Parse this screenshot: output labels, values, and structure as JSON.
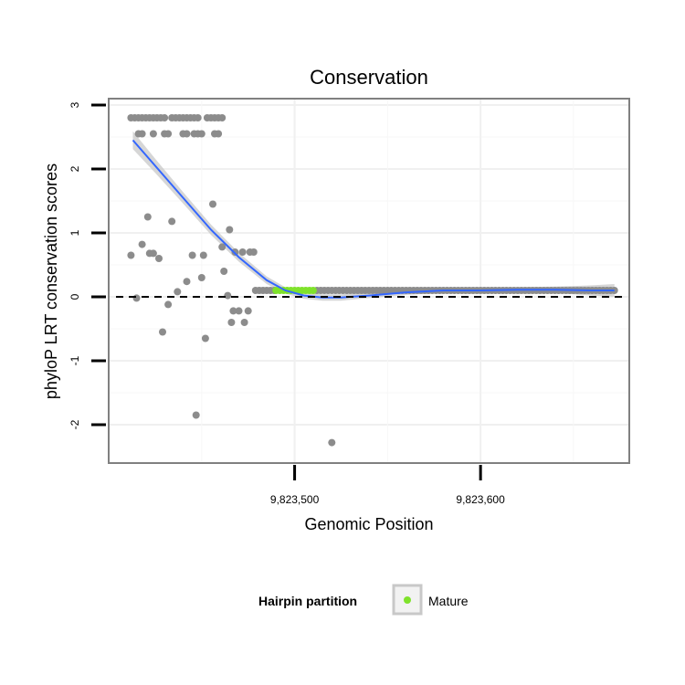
{
  "chart_data": {
    "type": "scatter",
    "title": "Conservation",
    "xlabel": "Genomic Position",
    "ylabel": "phyloP LRT conservation scores",
    "xlim": [
      9823400,
      9823680
    ],
    "ylim": [
      -2.6,
      3.1
    ],
    "x_ticks": [
      {
        "value": 9823500,
        "label": "9,823,500"
      },
      {
        "value": 9823600,
        "label": "9,823,600"
      }
    ],
    "y_ticks": [
      {
        "value": 3,
        "label": "3"
      },
      {
        "value": 2,
        "label": "2"
      },
      {
        "value": 1,
        "label": "1"
      },
      {
        "value": 0,
        "label": "0"
      },
      {
        "value": -1,
        "label": "-1"
      },
      {
        "value": -2,
        "label": "-2"
      }
    ],
    "grid": true,
    "reference_line": {
      "y": 0,
      "style": "dashed"
    },
    "legend": {
      "title": "Hairpin partition",
      "position": "bottom",
      "entries": [
        {
          "label": "Mature",
          "color": "#7fe22b"
        }
      ]
    },
    "colors": {
      "points": "#8c8c8c",
      "mature": "#7fe22b",
      "smooth": "#3366ff",
      "ribbon": "#c8c8c8",
      "reference": "#000000"
    },
    "series": [
      {
        "points": [
          [
            9823412,
            2.8
          ],
          [
            9823414,
            2.8
          ],
          [
            9823416,
            2.8
          ],
          [
            9823418,
            2.8
          ],
          [
            9823420,
            2.8
          ],
          [
            9823422,
            2.8
          ],
          [
            9823424,
            2.8
          ],
          [
            9823426,
            2.8
          ],
          [
            9823428,
            2.8
          ],
          [
            9823430,
            2.8
          ],
          [
            9823434,
            2.8
          ],
          [
            9823436,
            2.8
          ],
          [
            9823438,
            2.8
          ],
          [
            9823440,
            2.8
          ],
          [
            9823442,
            2.8
          ],
          [
            9823444,
            2.8
          ],
          [
            9823446,
            2.8
          ],
          [
            9823448,
            2.8
          ],
          [
            9823453,
            2.8
          ],
          [
            9823455,
            2.8
          ],
          [
            9823457,
            2.8
          ],
          [
            9823459,
            2.8
          ],
          [
            9823461,
            2.8
          ],
          [
            9823416,
            2.55
          ],
          [
            9823418,
            2.55
          ],
          [
            9823424,
            2.55
          ],
          [
            9823430,
            2.55
          ],
          [
            9823432,
            2.55
          ],
          [
            9823440,
            2.55
          ],
          [
            9823442,
            2.55
          ],
          [
            9823446,
            2.55
          ],
          [
            9823448,
            2.55
          ],
          [
            9823450,
            2.55
          ],
          [
            9823457,
            2.55
          ],
          [
            9823459,
            2.55
          ],
          [
            9823412,
            0.65
          ],
          [
            9823415,
            -0.02
          ],
          [
            9823418,
            0.82
          ],
          [
            9823421,
            1.25
          ],
          [
            9823422,
            0.68
          ],
          [
            9823424,
            0.68
          ],
          [
            9823427,
            0.6
          ],
          [
            9823429,
            -0.55
          ],
          [
            9823432,
            -0.12
          ],
          [
            9823434,
            1.18
          ],
          [
            9823437,
            0.08
          ],
          [
            9823442,
            0.24
          ],
          [
            9823445,
            0.65
          ],
          [
            9823447,
            -1.85
          ],
          [
            9823450,
            0.3
          ],
          [
            9823451,
            0.65
          ],
          [
            9823452,
            -0.65
          ],
          [
            9823456,
            1.45
          ],
          [
            9823461,
            0.78
          ],
          [
            9823462,
            0.4
          ],
          [
            9823464,
            0.02
          ],
          [
            9823465,
            1.05
          ],
          [
            9823466,
            -0.4
          ],
          [
            9823467,
            -0.22
          ],
          [
            9823468,
            0.7
          ],
          [
            9823470,
            -0.22
          ],
          [
            9823472,
            0.7
          ],
          [
            9823473,
            -0.4
          ],
          [
            9823475,
            -0.22
          ],
          [
            9823476,
            0.7
          ],
          [
            9823478,
            0.7
          ],
          [
            9823479,
            0.1
          ],
          [
            9823481,
            0.1
          ],
          [
            9823483,
            0.1
          ],
          [
            9823485,
            0.1
          ],
          [
            9823487,
            0.1
          ],
          [
            9823489,
            0.1
          ],
          [
            9823520,
            -2.28
          ],
          [
            9823512,
            0.1
          ],
          [
            9823514,
            0.1
          ],
          [
            9823516,
            0.1
          ],
          [
            9823518,
            0.1
          ],
          [
            9823520,
            0.1
          ],
          [
            9823522,
            0.1
          ],
          [
            9823524,
            0.1
          ],
          [
            9823526,
            0.1
          ],
          [
            9823528,
            0.1
          ],
          [
            9823530,
            0.1
          ],
          [
            9823532,
            0.1
          ],
          [
            9823534,
            0.1
          ],
          [
            9823536,
            0.1
          ],
          [
            9823538,
            0.1
          ],
          [
            9823540,
            0.1
          ],
          [
            9823542,
            0.1
          ],
          [
            9823544,
            0.1
          ],
          [
            9823546,
            0.1
          ],
          [
            9823548,
            0.1
          ],
          [
            9823550,
            0.1
          ],
          [
            9823552,
            0.1
          ],
          [
            9823554,
            0.1
          ],
          [
            9823556,
            0.1
          ],
          [
            9823558,
            0.1
          ],
          [
            9823560,
            0.1
          ],
          [
            9823562,
            0.1
          ],
          [
            9823564,
            0.1
          ],
          [
            9823566,
            0.1
          ],
          [
            9823568,
            0.1
          ],
          [
            9823570,
            0.1
          ],
          [
            9823572,
            0.1
          ],
          [
            9823574,
            0.1
          ],
          [
            9823576,
            0.1
          ],
          [
            9823578,
            0.1
          ],
          [
            9823580,
            0.1
          ],
          [
            9823582,
            0.1
          ],
          [
            9823584,
            0.1
          ],
          [
            9823586,
            0.1
          ],
          [
            9823588,
            0.1
          ],
          [
            9823590,
            0.1
          ],
          [
            9823592,
            0.1
          ],
          [
            9823594,
            0.1
          ],
          [
            9823596,
            0.1
          ],
          [
            9823598,
            0.1
          ],
          [
            9823600,
            0.1
          ],
          [
            9823602,
            0.1
          ],
          [
            9823604,
            0.1
          ],
          [
            9823606,
            0.1
          ],
          [
            9823608,
            0.1
          ],
          [
            9823610,
            0.1
          ],
          [
            9823612,
            0.1
          ],
          [
            9823614,
            0.1
          ],
          [
            9823616,
            0.1
          ],
          [
            9823618,
            0.1
          ],
          [
            9823620,
            0.1
          ],
          [
            9823622,
            0.1
          ],
          [
            9823624,
            0.1
          ],
          [
            9823626,
            0.1
          ],
          [
            9823628,
            0.1
          ],
          [
            9823630,
            0.1
          ],
          [
            9823632,
            0.1
          ],
          [
            9823634,
            0.1
          ],
          [
            9823636,
            0.1
          ],
          [
            9823638,
            0.1
          ],
          [
            9823640,
            0.1
          ],
          [
            9823642,
            0.1
          ],
          [
            9823644,
            0.1
          ],
          [
            9823646,
            0.1
          ],
          [
            9823648,
            0.1
          ],
          [
            9823650,
            0.1
          ],
          [
            9823652,
            0.1
          ],
          [
            9823654,
            0.1
          ],
          [
            9823656,
            0.1
          ],
          [
            9823658,
            0.1
          ],
          [
            9823660,
            0.1
          ],
          [
            9823662,
            0.1
          ],
          [
            9823664,
            0.1
          ],
          [
            9823666,
            0.1
          ],
          [
            9823668,
            0.1
          ],
          [
            9823670,
            0.1
          ],
          [
            9823672,
            0.1
          ]
        ]
      },
      {
        "name": "Mature",
        "points": [
          [
            9823490,
            0.1
          ],
          [
            9823492,
            0.1
          ],
          [
            9823494,
            0.1
          ],
          [
            9823496,
            0.1
          ],
          [
            9823498,
            0.1
          ],
          [
            9823500,
            0.1
          ],
          [
            9823502,
            0.1
          ],
          [
            9823504,
            0.1
          ],
          [
            9823506,
            0.1
          ],
          [
            9823508,
            0.1
          ],
          [
            9823510,
            0.1
          ]
        ]
      }
    ],
    "smooth": {
      "x": [
        9823413,
        9823425,
        9823440,
        9823455,
        9823470,
        9823485,
        9823495,
        9823505,
        9823515,
        9823525,
        9823540,
        9823560,
        9823580,
        9823600,
        9823620,
        9823640,
        9823660,
        9823672
      ],
      "y": [
        2.45,
        2.05,
        1.55,
        1.05,
        0.62,
        0.26,
        0.1,
        0.02,
        -0.01,
        -0.01,
        0.02,
        0.07,
        0.1,
        0.1,
        0.11,
        0.11,
        0.1,
        0.1
      ],
      "se": [
        0.14,
        0.11,
        0.09,
        0.08,
        0.07,
        0.06,
        0.05,
        0.05,
        0.05,
        0.05,
        0.04,
        0.04,
        0.04,
        0.04,
        0.04,
        0.05,
        0.08,
        0.1
      ]
    }
  }
}
